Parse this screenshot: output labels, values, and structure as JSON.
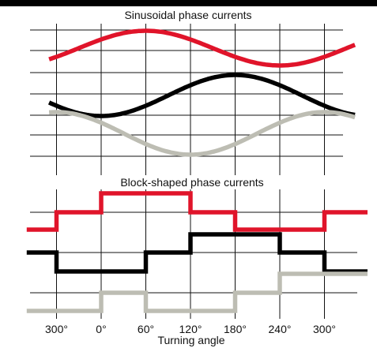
{
  "colors": {
    "top_bar": "#000000",
    "background": "#ffffff",
    "grid": "#111111",
    "phase_red": "#e0142a",
    "phase_black": "#000000",
    "phase_gray": "#bdbdb3"
  },
  "titles": {
    "sinusoidal": "Sinusoidal phase currents",
    "block": "Block-shaped phase currents"
  },
  "x_axis": {
    "label": "Turning angle",
    "ticks": [
      "300°",
      "0°",
      "60°",
      "120°",
      "180°",
      "240°",
      "300°"
    ],
    "tick_angles_deg": [
      -60,
      0,
      60,
      120,
      180,
      240,
      300
    ]
  },
  "chart_data": [
    {
      "type": "line",
      "title": "Sinusoidal phase currents",
      "xlabel": "Turning angle",
      "x_unit": "degrees",
      "xlim": [
        -75,
        345
      ],
      "series": [
        {
          "color": "#e0142a",
          "description": "sinusoid, peak near 60°, minimum near 240°"
        },
        {
          "color": "#000000",
          "description": "sinusoid, minimum near 0°, peak near 180°"
        },
        {
          "color": "#bdbdb3",
          "description": "sinusoid, peak near -60° and 300°, minimum near 120°"
        }
      ],
      "phase_peak_deg": [
        60,
        180,
        300
      ]
    },
    {
      "type": "line",
      "title": "Block-shaped phase currents",
      "xlabel": "Turning angle",
      "x_unit": "degrees",
      "levels": [
        "high",
        "zero",
        "low"
      ],
      "series": [
        {
          "color": "#e0142a",
          "x": [
            -75,
            -60,
            0,
            120,
            180,
            300,
            345
          ],
          "level": [
            "low",
            "zero",
            "high",
            "zero",
            "low",
            "zero",
            "zero"
          ]
        },
        {
          "color": "#000000",
          "x": [
            -75,
            -60,
            60,
            120,
            240,
            300,
            345
          ],
          "level": [
            "zero",
            "low",
            "zero",
            "high",
            "zero",
            "low",
            "low"
          ]
        },
        {
          "color": "#bdbdb3",
          "x": [
            -75,
            0,
            60,
            180,
            240,
            345
          ],
          "level": [
            "low",
            "zero",
            "low",
            "zero",
            "high",
            "high"
          ]
        }
      ]
    }
  ]
}
